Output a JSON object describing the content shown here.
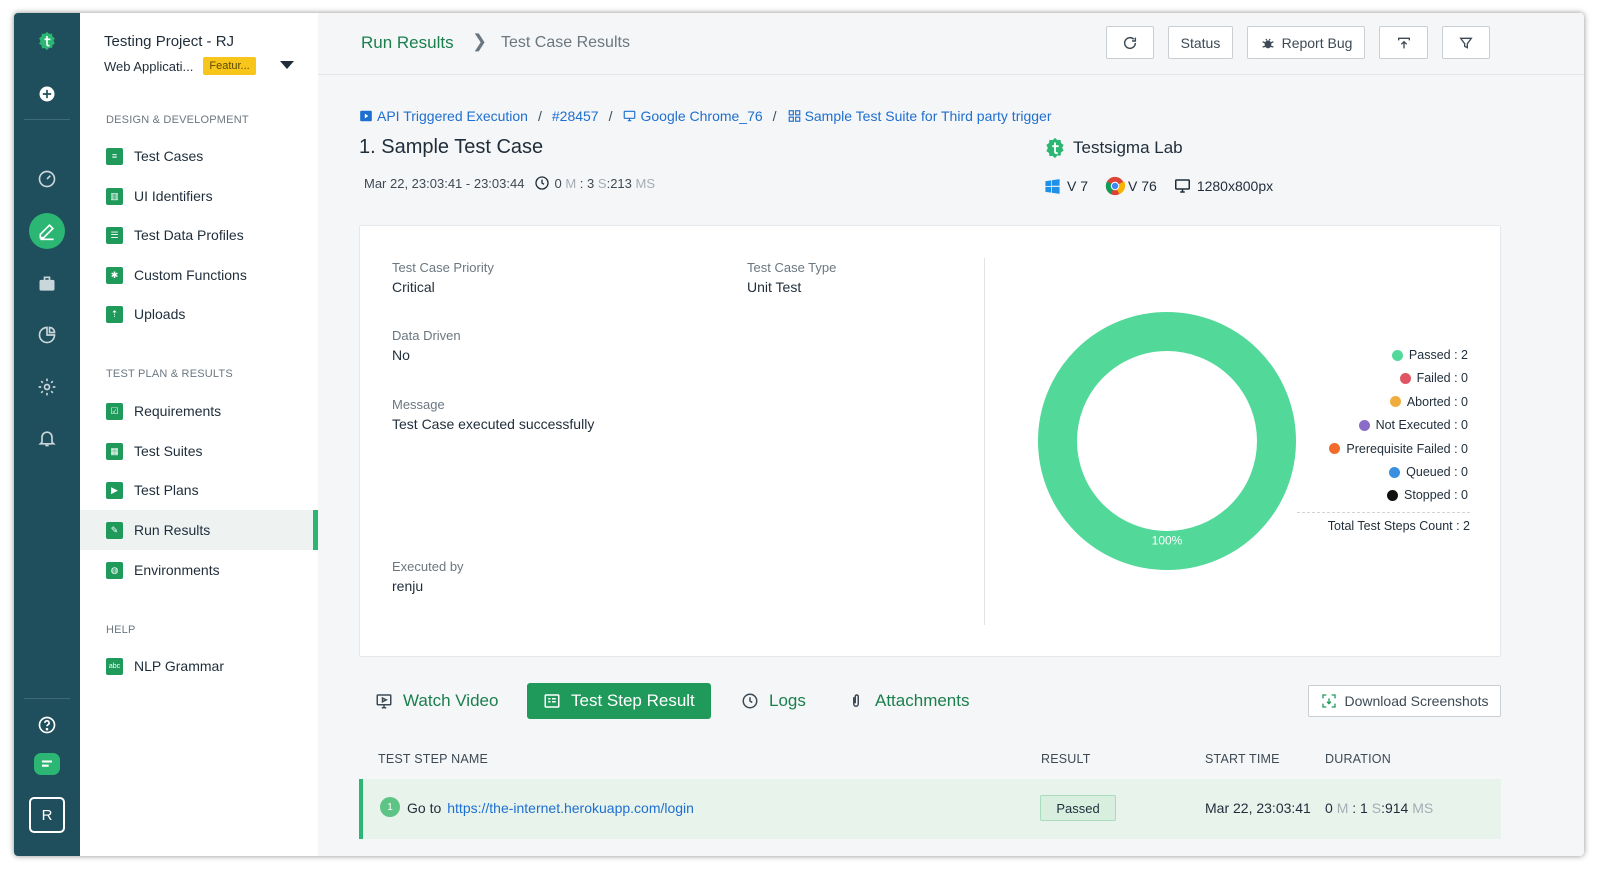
{
  "sidebar": {
    "project_name": "Testing Project - RJ",
    "app_name": "Web Applicati...",
    "app_badge": "Featur...",
    "sections": {
      "design": "DESIGN & DEVELOPMENT",
      "testplan": "TEST PLAN & RESULTS",
      "help": "HELP"
    },
    "design_items": [
      "Test Cases",
      "UI Identifiers",
      "Test Data Profiles",
      "Custom Functions",
      "Uploads"
    ],
    "plan_items": [
      "Requirements",
      "Test Suites",
      "Test Plans",
      "Run Results",
      "Environments"
    ],
    "help_items": [
      "NLP Grammar"
    ],
    "active_item": "Run Results"
  },
  "rail": {
    "avatar_initial": "R"
  },
  "topbar": {
    "breadcrumb_root": "Run Results",
    "breadcrumb_current": "Test Case Results",
    "status_label": "Status",
    "report_bug_label": "Report Bug"
  },
  "run_path": {
    "execution": "API Triggered Execution",
    "run_id": "#28457",
    "browser": "Google Chrome_76",
    "suite": "Sample Test Suite for Third party trigger",
    "separator": "/"
  },
  "test_case": {
    "title": "1. Sample Test Case",
    "time_range": "Mar 22, 23:03:41 - 23:03:44",
    "dur_m_val": "0",
    "dur_m_unit": "M",
    "dur_sep": ":",
    "dur_s_val": "3",
    "dur_s_unit": "S",
    "dur_ms_val": "213",
    "dur_ms_unit": "MS"
  },
  "environment": {
    "lab_name": "Testsigma Lab",
    "os_version": "V 7",
    "browser_version": "V 76",
    "resolution": "1280x800px"
  },
  "details": {
    "priority_label": "Test Case Priority",
    "priority_value": "Critical",
    "type_label": "Test Case Type",
    "type_value": "Unit Test",
    "data_driven_label": "Data Driven",
    "data_driven_value": "No",
    "message_label": "Message",
    "message_value": "Test Case executed successfully",
    "executed_by_label": "Executed by",
    "executed_by_value": "renju"
  },
  "chart_data": {
    "type": "pie",
    "donut": true,
    "categories": [
      "Passed",
      "Failed",
      "Aborted",
      "Not Executed",
      "Prerequisite Failed",
      "Queued",
      "Stopped"
    ],
    "values": [
      2,
      0,
      0,
      0,
      0,
      0,
      0
    ],
    "colors": [
      "#52d99a",
      "#e05564",
      "#f0ad3d",
      "#8b6cc8",
      "#f26b2a",
      "#3a8fe0",
      "#111111"
    ],
    "legend_labels": [
      "Passed : 2",
      "Failed : 0",
      "Aborted : 0",
      "Not Executed : 0",
      "Prerequisite Failed : 0",
      "Queued : 0",
      "Stopped : 0"
    ],
    "data_label": "100%",
    "total_label": "Total Test Steps Count : 2",
    "legend_position": "right"
  },
  "tabs": {
    "watch_video": "Watch Video",
    "test_step_result": "Test Step Result",
    "logs": "Logs",
    "attachments": "Attachments",
    "download": "Download Screenshots",
    "active": "Test Step Result"
  },
  "table": {
    "headers": [
      "TEST STEP NAME",
      "RESULT",
      "START TIME",
      "DURATION"
    ],
    "rows": [
      {
        "index": "1",
        "action": "Go to",
        "url": "https://the-internet.herokuapp.com/login",
        "result": "Passed",
        "start": "Mar 22, 23:03:41",
        "dur_m_val": "0",
        "dur_m_unit": "M",
        "dur_sep": ":",
        "dur_s_val": "1",
        "dur_s_unit": "S",
        "dur_ms_val": "914",
        "dur_ms_unit": "MS"
      }
    ]
  }
}
